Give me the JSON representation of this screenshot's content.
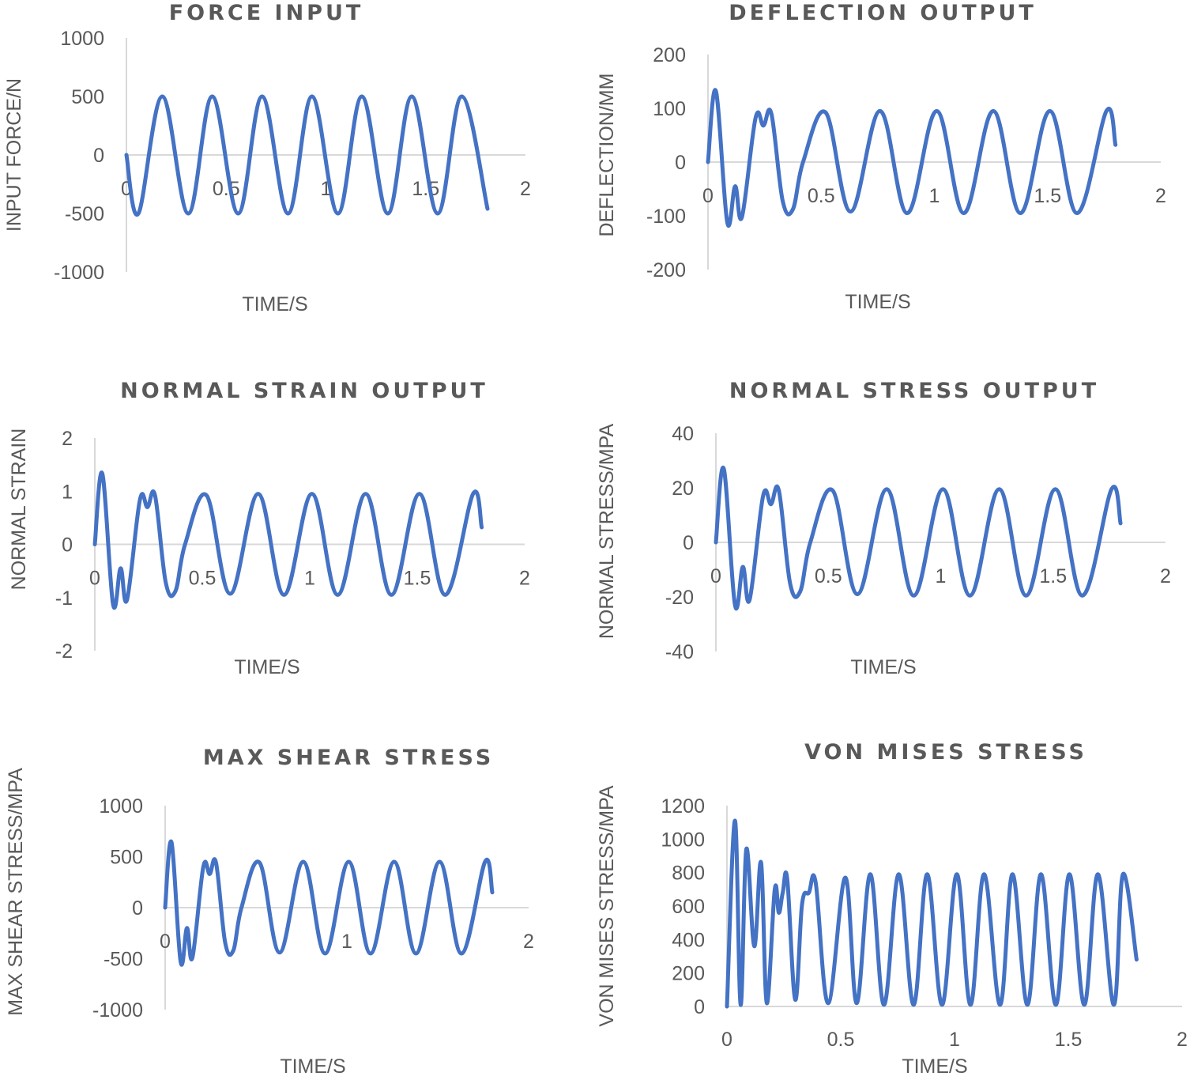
{
  "colors": {
    "series": "#4472c4",
    "axis": "#d9d9d9",
    "text": "#595959"
  },
  "chart_data": [
    {
      "id": "force",
      "type": "line",
      "title": "FORCE INPUT",
      "xlabel": "TIME/S",
      "ylabel": "INPUT FORCE/N",
      "xlim": [
        0,
        2
      ],
      "ylim": [
        -1000,
        1000
      ],
      "xticks": [
        "0",
        "0.5",
        "1",
        "1.5",
        "2"
      ],
      "yticks": [
        "1000",
        "500",
        "0",
        "-500",
        "-1000"
      ],
      "series": [
        {
          "x": [
            0,
            0.06,
            0.18,
            0.31,
            0.43,
            0.56,
            0.68,
            0.81,
            0.93,
            1.06,
            1.18,
            1.31,
            1.43,
            1.56,
            1.68,
            1.81
          ],
          "y": [
            0,
            -500,
            500,
            -500,
            500,
            -500,
            500,
            -500,
            500,
            -500,
            500,
            -500,
            500,
            -500,
            500,
            -460
          ]
        }
      ]
    },
    {
      "id": "deflection",
      "type": "line",
      "title": "DEFLECTION OUTPUT",
      "xlabel": "TIME/S",
      "ylabel": "DEFLECTION/MM",
      "xlim": [
        0,
        2
      ],
      "ylim": [
        -200,
        200
      ],
      "xticks": [
        "0",
        "0.5",
        "1",
        "1.5",
        "2"
      ],
      "yticks": [
        "200",
        "100",
        "0",
        "-100",
        "-200"
      ],
      "series": [
        {
          "x": [
            0,
            0.035,
            0.085,
            0.12,
            0.15,
            0.21,
            0.245,
            0.28,
            0.33,
            0.375,
            0.42,
            0.52,
            0.63,
            0.76,
            0.88,
            1.01,
            1.13,
            1.26,
            1.38,
            1.51,
            1.63,
            1.76,
            1.8
          ],
          "y": [
            0,
            132,
            -112,
            -45,
            -102,
            82,
            68,
            90,
            -72,
            -88,
            0,
            92,
            -92,
            95,
            -95,
            95,
            -95,
            95,
            -95,
            95,
            -95,
            95,
            32
          ]
        }
      ]
    },
    {
      "id": "strain",
      "type": "line",
      "title": "NORMAL STRAIN OUTPUT",
      "xlabel": "TIME/S",
      "ylabel": "NORMAL STRAIN",
      "xlim": [
        0,
        2
      ],
      "ylim": [
        -2,
        2
      ],
      "xticks": [
        "0",
        "0.5",
        "1",
        "1.5",
        "2"
      ],
      "yticks": [
        "2",
        "1",
        "0",
        "-1",
        "-2"
      ],
      "series": [
        {
          "x": [
            0,
            0.035,
            0.085,
            0.12,
            0.15,
            0.21,
            0.245,
            0.28,
            0.33,
            0.375,
            0.42,
            0.52,
            0.63,
            0.76,
            0.88,
            1.01,
            1.13,
            1.26,
            1.38,
            1.51,
            1.63,
            1.76,
            1.8
          ],
          "y": [
            0,
            1.33,
            -1.13,
            -0.45,
            -1.04,
            0.84,
            0.7,
            0.92,
            -0.72,
            -0.88,
            0,
            0.92,
            -0.93,
            0.95,
            -0.95,
            0.95,
            -0.95,
            0.95,
            -0.95,
            0.95,
            -0.95,
            0.95,
            0.32
          ]
        }
      ]
    },
    {
      "id": "stress",
      "type": "line",
      "title": "NORMAL STRESS OUTPUT",
      "xlabel": "TIME/S",
      "ylabel": "NORMAL STRESS/MPA",
      "xlim": [
        0,
        2
      ],
      "ylim": [
        -40,
        40
      ],
      "xticks": [
        "0",
        "0.5",
        "1",
        "1.5",
        "2"
      ],
      "yticks": [
        "40",
        "20",
        "0",
        "-20",
        "-40"
      ],
      "series": [
        {
          "x": [
            0,
            0.035,
            0.085,
            0.12,
            0.15,
            0.21,
            0.245,
            0.28,
            0.33,
            0.375,
            0.42,
            0.52,
            0.63,
            0.76,
            0.88,
            1.01,
            1.13,
            1.26,
            1.38,
            1.51,
            1.63,
            1.76,
            1.8
          ],
          "y": [
            0,
            27,
            -23,
            -9,
            -21,
            17,
            14,
            19,
            -15,
            -18,
            0,
            19,
            -19,
            19.5,
            -19.5,
            19.5,
            -19.5,
            19.5,
            -19.5,
            19.5,
            -19.5,
            19.5,
            7
          ]
        }
      ]
    },
    {
      "id": "shear",
      "type": "line",
      "title": "MAX SHEAR STRESS",
      "xlabel": "TIME/S",
      "ylabel": "MAX SHEAR STRESS/MPA",
      "xlim": [
        0,
        2
      ],
      "ylim": [
        -1000,
        1000
      ],
      "xticks": [
        "0",
        "1",
        "2"
      ],
      "xtickvals": [
        0,
        1,
        2
      ],
      "yticks": [
        "1000",
        "500",
        "0",
        "-500",
        "-1000"
      ],
      "series": [
        {
          "x": [
            0,
            0.035,
            0.085,
            0.12,
            0.15,
            0.21,
            0.245,
            0.28,
            0.33,
            0.375,
            0.42,
            0.52,
            0.63,
            0.76,
            0.88,
            1.01,
            1.13,
            1.26,
            1.38,
            1.51,
            1.63,
            1.76,
            1.8
          ],
          "y": [
            0,
            640,
            -530,
            -200,
            -490,
            400,
            330,
            440,
            -340,
            -420,
            0,
            440,
            -440,
            450,
            -450,
            450,
            -450,
            450,
            -450,
            450,
            -450,
            450,
            150
          ]
        }
      ]
    },
    {
      "id": "vonmises",
      "type": "line",
      "title": "VON MISES STRESS",
      "xlabel": "TIME/S",
      "ylabel": "VON MISES  STRESS/MPA",
      "xlim": [
        0,
        2
      ],
      "ylim": [
        0,
        1200
      ],
      "xticks": [
        "0",
        "0.5",
        "1",
        "1.5",
        "2"
      ],
      "yticks": [
        "1200",
        "1000",
        "800",
        "600",
        "400",
        "200",
        "0"
      ],
      "series": [
        {
          "x": [
            0,
            0.035,
            0.06,
            0.085,
            0.12,
            0.15,
            0.175,
            0.21,
            0.228,
            0.245,
            0.265,
            0.3,
            0.33,
            0.36,
            0.39,
            0.445,
            0.52,
            0.57,
            0.63,
            0.69,
            0.755,
            0.82,
            0.88,
            0.945,
            1.01,
            1.07,
            1.13,
            1.2,
            1.255,
            1.32,
            1.38,
            1.445,
            1.505,
            1.57,
            1.63,
            1.7,
            1.74,
            1.8
          ],
          "y": [
            0,
            1110,
            10,
            940,
            360,
            860,
            20,
            700,
            560,
            680,
            760,
            40,
            610,
            680,
            740,
            20,
            770,
            20,
            790,
            10,
            790,
            10,
            790,
            10,
            790,
            10,
            790,
            10,
            790,
            10,
            790,
            10,
            790,
            10,
            790,
            10,
            790,
            280
          ]
        }
      ]
    }
  ]
}
